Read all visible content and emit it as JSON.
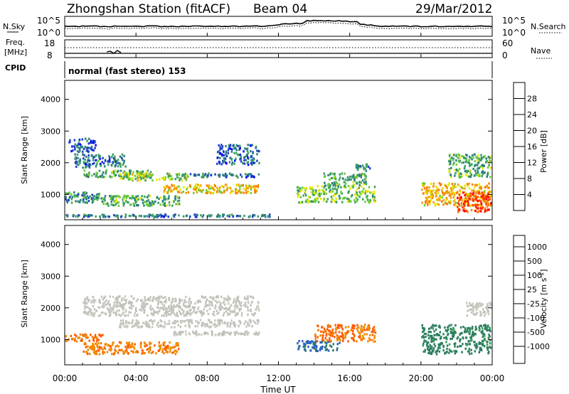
{
  "header": {
    "station": "Zhongshan Station (fitACF)",
    "beam": "Beam 04",
    "date": "29/Mar/2012"
  },
  "panels": {
    "nsky": {
      "left_label": "N.Sky",
      "right_label": "N.Search",
      "left_ticks": [
        "10^5",
        "10^0"
      ],
      "right_ticks": [
        "10^5",
        "10^0"
      ]
    },
    "freq": {
      "left_label_1": "Freq.",
      "left_label_2": "[MHz]",
      "right_label": "Nave",
      "left_ticks": [
        "18",
        "8"
      ],
      "right_ticks": [
        "60",
        "0"
      ]
    },
    "cpid": {
      "label": "CPID",
      "mode": "normal (fast stereo) 153"
    }
  },
  "chart_data": [
    {
      "type": "heatmap",
      "name": "power",
      "ylabel": "Slant Range [km]",
      "ylim": [
        200,
        4600
      ],
      "yticks": [
        1000,
        2000,
        3000,
        4000
      ],
      "xlim": [
        0,
        24
      ],
      "colorbar": {
        "label": "Power [dB]",
        "range": [
          0,
          32
        ],
        "ticks": [
          4,
          8,
          12,
          16,
          20,
          24,
          28
        ],
        "colors": [
          "#0000ff",
          "#1e3ecf",
          "#2e7f7f",
          "#3aa060",
          "#6ccc3a",
          "#e6e600",
          "#f0a000",
          "#ff7a00",
          "#ff3a00",
          "#ff0000"
        ]
      },
      "patches": [
        {
          "t": [
            0.2,
            1.8
          ],
          "r": [
            2300,
            2800
          ],
          "v": 6
        },
        {
          "t": [
            0.5,
            3.5
          ],
          "r": [
            1800,
            2300
          ],
          "v": 8
        },
        {
          "t": [
            1.0,
            5.0
          ],
          "r": [
            1500,
            1800
          ],
          "v": 12
        },
        {
          "t": [
            3.0,
            7.0
          ],
          "r": [
            1400,
            1700
          ],
          "v": 15
        },
        {
          "t": [
            6.5,
            11.0
          ],
          "r": [
            1500,
            1700
          ],
          "v": 8
        },
        {
          "t": [
            5.5,
            11.0
          ],
          "r": [
            1000,
            1350
          ],
          "v": 19
        },
        {
          "t": [
            0.0,
            2.0
          ],
          "r": [
            700,
            1100
          ],
          "v": 10
        },
        {
          "t": [
            2.0,
            6.5
          ],
          "r": [
            600,
            1000
          ],
          "v": 12
        },
        {
          "t": [
            8.5,
            11.0
          ],
          "r": [
            1900,
            2600
          ],
          "v": 7
        },
        {
          "t": [
            0.0,
            12.0
          ],
          "r": [
            250,
            400
          ],
          "v": 8
        },
        {
          "t": [
            13.0,
            17.5
          ],
          "r": [
            700,
            1300
          ],
          "v": 14
        },
        {
          "t": [
            14.5,
            17.0
          ],
          "r": [
            1200,
            1700
          ],
          "v": 12
        },
        {
          "t": [
            16.3,
            17.2
          ],
          "r": [
            1700,
            2000
          ],
          "v": 9
        },
        {
          "t": [
            20.0,
            24.0
          ],
          "r": [
            600,
            1400
          ],
          "v": 20
        },
        {
          "t": [
            22.0,
            24.0
          ],
          "r": [
            400,
            1100
          ],
          "v": 27
        },
        {
          "t": [
            21.5,
            24.0
          ],
          "r": [
            1500,
            2300
          ],
          "v": 12
        }
      ]
    },
    {
      "type": "heatmap",
      "name": "velocity",
      "ylabel": "Slant Range [km]",
      "ylim": [
        200,
        4600
      ],
      "yticks": [
        1000,
        2000,
        3000,
        4000
      ],
      "xlim": [
        0,
        24
      ],
      "xticks": [
        "00:00",
        "04:00",
        "08:00",
        "12:00",
        "16:00",
        "20:00",
        "00:00"
      ],
      "xlabel": "Time UT",
      "colorbar": {
        "label": "Velocity [m s^-1]",
        "ticks": [
          "1000",
          "500",
          "100",
          "25",
          "-25",
          "-100",
          "-500",
          "-1000"
        ],
        "colors": [
          "#1f3fbf",
          "#2a62c8",
          "#2e7f5f",
          "#3aa05a",
          "#6ccc3a",
          "#c0c0b8",
          "#c8c8c0",
          "#f0a020",
          "#f08a00",
          "#ff5a00",
          "#ff0000"
        ]
      },
      "patches": [
        {
          "t": [
            1.0,
            11.0
          ],
          "r": [
            1700,
            2400
          ],
          "v": 0
        },
        {
          "t": [
            3.0,
            11.0
          ],
          "r": [
            1350,
            1650
          ],
          "v": 0
        },
        {
          "t": [
            6.0,
            11.0
          ],
          "r": [
            1100,
            1300
          ],
          "v": 0
        },
        {
          "t": [
            0.0,
            2.2
          ],
          "r": [
            900,
            1200
          ],
          "v": -300
        },
        {
          "t": [
            1.0,
            6.5
          ],
          "r": [
            500,
            950
          ],
          "v": -250
        },
        {
          "t": [
            13.0,
            15.5
          ],
          "r": [
            600,
            1000
          ],
          "v": 300
        },
        {
          "t": [
            14.0,
            17.5
          ],
          "r": [
            900,
            1500
          ],
          "v": -300
        },
        {
          "t": [
            20.0,
            24.0
          ],
          "r": [
            500,
            1500
          ],
          "v": 150
        },
        {
          "t": [
            22.5,
            24.0
          ],
          "r": [
            1700,
            2200
          ],
          "v": 0
        }
      ]
    }
  ]
}
